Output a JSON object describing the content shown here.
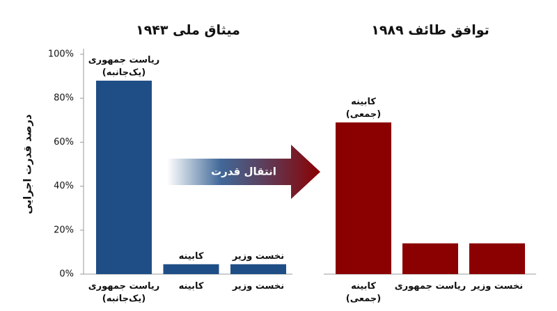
{
  "chart_data": [
    {
      "type": "bar",
      "title": "میثاق ملی ۱۹۴۳",
      "ylabel": "درصد قدرت اجرایی",
      "categories": [
        [
          "ریاست جمهوری",
          "(یک‌جانبه)"
        ],
        [
          "کابینه"
        ],
        [
          "نخست وزیر"
        ]
      ],
      "bar_labels": [
        [
          "ریاست جمهوری",
          "(یک‌جانبه)"
        ],
        [
          "کابینه"
        ],
        [
          "نخست وزیر"
        ]
      ],
      "values": [
        88,
        4.5,
        4.5
      ],
      "color": "#1f4e86",
      "ylim": [
        0,
        100
      ],
      "yticks": [
        {
          "value": 0,
          "label": "0%"
        },
        {
          "value": 20,
          "label": "20%"
        },
        {
          "value": 40,
          "label": "40%"
        },
        {
          "value": 60,
          "label": "60%"
        },
        {
          "value": 80,
          "label": "80%"
        },
        {
          "value": 100,
          "label": "100%"
        }
      ],
      "annotation": "انتقال قدرت"
    },
    {
      "type": "bar",
      "title": "توافق طائف ۱۹۸۹",
      "categories": [
        [
          "کابینه",
          "(جمعی)"
        ],
        [
          "ریاست جمهوری"
        ],
        [
          "نخست وزیر"
        ]
      ],
      "bar_labels": [
        [
          "کابینه",
          "(جمعی)"
        ],
        null,
        null
      ],
      "values": [
        69,
        14,
        14
      ],
      "color": "#8b0000",
      "ylim": [
        0,
        100
      ]
    }
  ]
}
